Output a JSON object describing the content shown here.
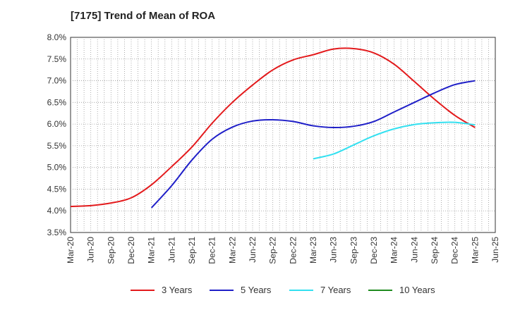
{
  "title": "[7175]  Trend of Mean of ROA",
  "chart_data": {
    "type": "line",
    "title": "[7175]  Trend of Mean of ROA",
    "x": [
      "Mar-20",
      "Jun-20",
      "Sep-20",
      "Dec-20",
      "Mar-21",
      "Jun-21",
      "Sep-21",
      "Dec-21",
      "Mar-22",
      "Jun-22",
      "Sep-22",
      "Dec-22",
      "Mar-23",
      "Jun-23",
      "Sep-23",
      "Dec-23",
      "Mar-24",
      "Jun-24",
      "Sep-24",
      "Dec-24",
      "Mar-25",
      "Jun-25"
    ],
    "y_ticks": [
      "3.5%",
      "4.0%",
      "4.5%",
      "5.0%",
      "5.5%",
      "6.0%",
      "6.5%",
      "7.0%",
      "7.5%",
      "8.0%"
    ],
    "ylim": [
      3.5,
      8.0
    ],
    "grid": true,
    "legend_position": "bottom",
    "series": [
      {
        "name": "3 Years",
        "color": "#e31a1c",
        "values": [
          4.1,
          4.12,
          4.18,
          4.3,
          4.6,
          5.02,
          5.47,
          6.02,
          6.5,
          6.9,
          7.25,
          7.48,
          7.6,
          7.73,
          7.74,
          7.64,
          7.38,
          6.98,
          6.57,
          6.2,
          5.92,
          null
        ]
      },
      {
        "name": "5 Years",
        "color": "#1f1fc8",
        "values": [
          null,
          null,
          null,
          null,
          4.07,
          4.58,
          5.17,
          5.65,
          5.93,
          6.07,
          6.1,
          6.06,
          5.96,
          5.92,
          5.95,
          6.06,
          6.28,
          6.5,
          6.72,
          6.91,
          7.0,
          null
        ]
      },
      {
        "name": "7 Years",
        "color": "#33e0f0",
        "values": [
          null,
          null,
          null,
          null,
          null,
          null,
          null,
          null,
          null,
          null,
          null,
          null,
          5.2,
          5.31,
          5.52,
          5.73,
          5.89,
          5.99,
          6.03,
          6.04,
          5.98,
          null
        ]
      },
      {
        "name": "10 Years",
        "color": "#1f8c1f",
        "values": [
          null,
          null,
          null,
          null,
          null,
          null,
          null,
          null,
          null,
          null,
          null,
          null,
          null,
          null,
          null,
          null,
          null,
          null,
          null,
          null,
          null,
          null
        ]
      }
    ]
  }
}
